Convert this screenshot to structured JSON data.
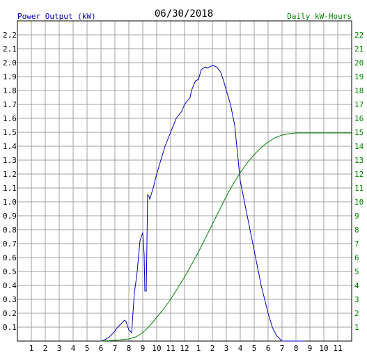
{
  "chart_data": {
    "type": "line",
    "title": "06/30/2018",
    "ylabel_left": "Power Output (kW)",
    "ylabel_right": "Daily kW-Hours",
    "x_tick_labels": [
      "1",
      "2",
      "3",
      "4",
      "5",
      "6",
      "7",
      "8",
      "9",
      "10",
      "11",
      "12",
      "1",
      "2",
      "3",
      "4",
      "5",
      "6",
      "7",
      "8",
      "9",
      "10",
      "11"
    ],
    "x_range_hours": [
      0,
      24
    ],
    "ylim_left": [
      0,
      2.3
    ],
    "ylim_right": [
      0,
      23
    ],
    "y_left_ticks": [
      "0.1",
      "0.2",
      "0.3",
      "0.4",
      "0.5",
      "0.6",
      "0.7",
      "0.8",
      "0.9",
      "1.0",
      "1.1",
      "1.2",
      "1.3",
      "1.4",
      "1.5",
      "1.6",
      "1.7",
      "1.8",
      "1.9",
      "2.0",
      "2.1",
      "2.2"
    ],
    "y_right_ticks": [
      "1",
      "2",
      "3",
      "4",
      "5",
      "6",
      "7",
      "8",
      "9",
      "10",
      "11",
      "12",
      "13",
      "14",
      "15",
      "16",
      "17",
      "18",
      "19",
      "20",
      "21",
      "22"
    ],
    "grid": true,
    "colors": {
      "power": "#0000c0",
      "energy": "#008000",
      "left_label": "#0000c0",
      "right_label": "#008000",
      "grid": "#a0a0a0",
      "axis": "#000000"
    },
    "series": [
      {
        "name": "Power Output (kW)",
        "axis": "left",
        "x": [
          6.0,
          6.3,
          6.6,
          6.9,
          7.2,
          7.5,
          7.7,
          7.8,
          8.0,
          8.2,
          8.4,
          8.5,
          8.6,
          8.8,
          9.0,
          9.1,
          9.15,
          9.25,
          9.35,
          9.45,
          9.5,
          9.55,
          9.6,
          9.8,
          10.0,
          10.3,
          10.6,
          11.0,
          11.4,
          11.8,
          12.0,
          12.4,
          12.5,
          12.7,
          12.8,
          13.0,
          13.2,
          13.5,
          13.6,
          13.8,
          14.0,
          14.3,
          14.6,
          14.8,
          15.0,
          15.3,
          15.6,
          15.8,
          16.0,
          16.2,
          16.4,
          16.6,
          16.8,
          17.0,
          17.2,
          17.5,
          17.8,
          18.0,
          18.3,
          18.6,
          19.0,
          19.3,
          19.6,
          19.8,
          20.0,
          20.2,
          20.4,
          20.6
        ],
        "values": [
          0.0,
          0.01,
          0.03,
          0.06,
          0.1,
          0.13,
          0.15,
          0.14,
          0.08,
          0.06,
          0.35,
          0.42,
          0.5,
          0.72,
          0.78,
          0.62,
          0.36,
          0.36,
          1.05,
          1.04,
          1.02,
          1.03,
          1.05,
          1.12,
          1.2,
          1.3,
          1.4,
          1.5,
          1.6,
          1.65,
          1.7,
          1.75,
          1.8,
          1.85,
          1.87,
          1.88,
          1.95,
          1.97,
          1.96,
          1.97,
          1.98,
          1.97,
          1.93,
          1.87,
          1.8,
          1.7,
          1.55,
          1.35,
          1.15,
          1.05,
          0.95,
          0.85,
          0.75,
          0.65,
          0.55,
          0.4,
          0.28,
          0.2,
          0.1,
          0.04,
          0.0,
          0.0,
          0.0,
          0.0,
          0.0,
          0.0,
          0.0,
          0.0
        ]
      },
      {
        "name": "Daily kW-Hours",
        "axis": "right",
        "x": [
          6.0,
          7.0,
          8.0,
          8.5,
          9.0,
          9.5,
          10.0,
          10.5,
          11.0,
          11.5,
          12.0,
          12.5,
          13.0,
          13.5,
          14.0,
          14.5,
          15.0,
          15.5,
          16.0,
          16.5,
          17.0,
          17.5,
          18.0,
          18.5,
          19.0,
          19.5,
          20.0,
          21.0,
          22.0,
          23.0,
          24.0
        ],
        "values": [
          0.0,
          0.05,
          0.15,
          0.3,
          0.6,
          1.1,
          1.7,
          2.3,
          3.0,
          3.8,
          4.6,
          5.5,
          6.4,
          7.4,
          8.4,
          9.4,
          10.4,
          11.3,
          12.1,
          12.8,
          13.4,
          13.9,
          14.3,
          14.6,
          14.8,
          14.9,
          14.95,
          14.95,
          14.95,
          14.95,
          14.95
        ]
      }
    ]
  }
}
